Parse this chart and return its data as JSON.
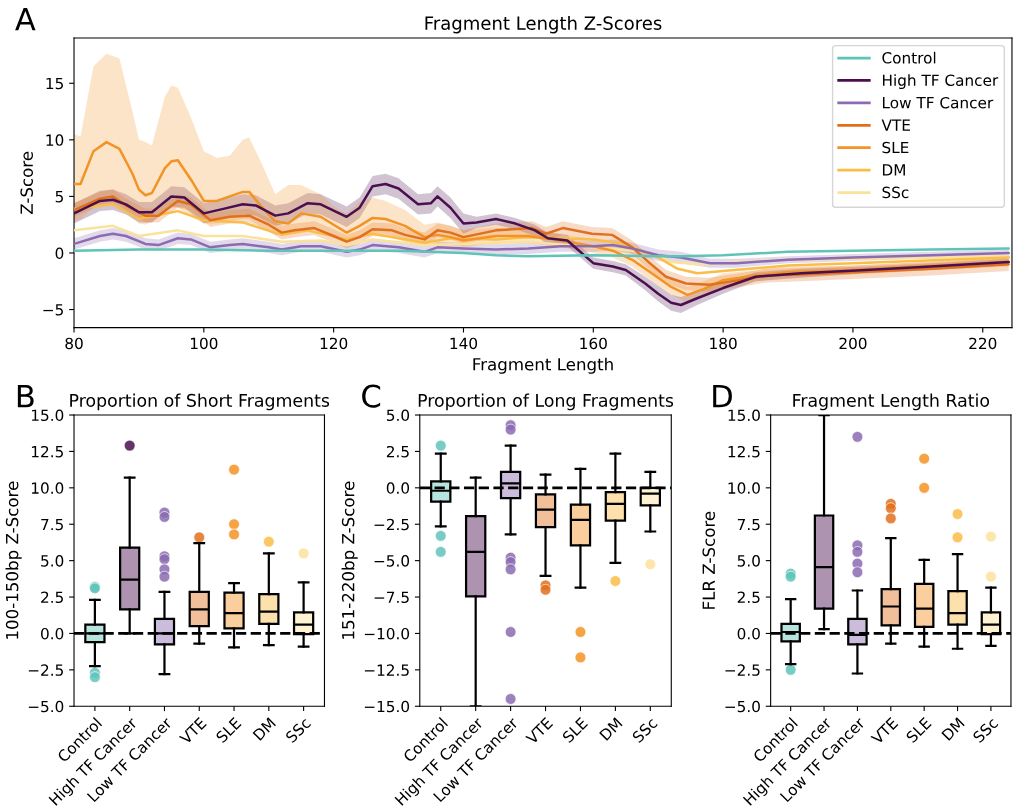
{
  "chart_data": [
    {
      "type": "line",
      "title": "Fragment Length Z-Scores",
      "xlabel": "Fragment Length",
      "ylabel": "Z-Score",
      "annotations": [
        "A"
      ],
      "xlim": [
        80,
        224.5
      ],
      "ylim": [
        -6.6,
        19
      ],
      "xticks": [
        80,
        100,
        120,
        140,
        160,
        180,
        200,
        220
      ],
      "yticks": [
        {
          "value": -5,
          "label": "−5"
        },
        0,
        5,
        10,
        15
      ],
      "legend": "top right",
      "grid": false,
      "series": [
        {
          "name": "Control",
          "color": "#5fc4b8",
          "x": [
            80,
            90,
            100,
            110,
            120,
            130,
            140,
            145,
            150,
            160,
            170,
            173.5,
            180,
            190,
            200,
            212,
            224
          ],
          "values": [
            0.2,
            0.3,
            0.3,
            0.2,
            0.2,
            0.2,
            0.0,
            -0.2,
            -0.3,
            -0.2,
            -0.3,
            -0.3,
            -0.2,
            0.1,
            0.2,
            0.3,
            0.4
          ]
        },
        {
          "name": "High TF Cancer",
          "color": "#4a0f4f",
          "x": [
            80,
            84,
            86,
            88,
            90,
            92,
            95,
            97,
            100,
            103,
            106,
            108,
            111,
            113,
            116,
            118,
            122,
            124,
            126,
            128,
            130,
            133,
            135,
            136,
            138,
            140,
            142,
            145,
            148,
            151,
            153,
            156,
            160,
            163,
            165,
            168,
            170,
            172,
            173.5,
            176,
            180,
            185,
            192,
            202,
            212,
            224
          ],
          "values": [
            3.5,
            4.6,
            4.7,
            4.3,
            3.6,
            3.6,
            5.0,
            4.9,
            3.5,
            3.9,
            4.3,
            4.2,
            3.3,
            3.5,
            4.4,
            4.3,
            3.2,
            4.0,
            5.9,
            6.1,
            5.7,
            4.3,
            4.4,
            5.0,
            4.0,
            2.6,
            2.7,
            3.0,
            2.6,
            2.0,
            1.3,
            1.1,
            -0.9,
            -1.2,
            -1.5,
            -2.7,
            -3.6,
            -4.4,
            -4.6,
            -4.0,
            -3.1,
            -2.1,
            -1.8,
            -1.5,
            -1.2,
            -0.8
          ],
          "lower": [
            2.6,
            3.7,
            3.8,
            3.4,
            2.7,
            2.7,
            4.1,
            4.0,
            2.6,
            3.0,
            3.4,
            3.3,
            2.4,
            2.6,
            3.5,
            3.4,
            2.3,
            3.1,
            5.0,
            5.2,
            4.8,
            3.4,
            3.5,
            4.1,
            3.1,
            1.7,
            2.2,
            2.5,
            2.1,
            1.5,
            0.8,
            0.6,
            -1.4,
            -1.7,
            -2.0,
            -3.3,
            -4.3,
            -5.1,
            -5.3,
            -4.6,
            -3.6,
            -2.5,
            -2.2,
            -1.8,
            -1.5,
            -1.1
          ],
          "upper": [
            4.4,
            5.5,
            5.6,
            5.2,
            4.5,
            4.5,
            5.9,
            5.8,
            4.4,
            4.8,
            5.2,
            5.1,
            4.2,
            4.4,
            5.3,
            5.2,
            4.1,
            4.9,
            6.8,
            7.0,
            6.6,
            5.2,
            5.3,
            5.9,
            4.9,
            3.5,
            3.2,
            3.5,
            3.1,
            2.5,
            1.8,
            1.6,
            -0.4,
            -0.7,
            -1.0,
            -2.1,
            -2.9,
            -3.7,
            -3.9,
            -3.4,
            -2.6,
            -1.7,
            -1.4,
            -1.2,
            -0.9,
            -0.5
          ]
        },
        {
          "name": "Low TF Cancer",
          "color": "#8c6bb1",
          "x": [
            80,
            84,
            86,
            88,
            91,
            93,
            96,
            98,
            101,
            104,
            106,
            110,
            112,
            115,
            118,
            122,
            124,
            126,
            130,
            134,
            136,
            140,
            145,
            150,
            155,
            160,
            163,
            166,
            170,
            173.5,
            178,
            182,
            190,
            200,
            224
          ],
          "values": [
            0.8,
            1.5,
            1.7,
            1.5,
            0.8,
            0.7,
            1.3,
            1.2,
            0.5,
            0.7,
            0.8,
            0.5,
            0.3,
            0.6,
            0.6,
            0.1,
            0.3,
            0.7,
            0.5,
            0.1,
            0.5,
            0.4,
            0.3,
            0.4,
            0.6,
            0.6,
            0.7,
            0.4,
            -0.2,
            -0.4,
            -0.9,
            -0.9,
            -0.6,
            -0.4,
            0.0
          ],
          "lower": [
            0.3,
            1.0,
            1.2,
            1.0,
            0.3,
            0.2,
            0.8,
            0.7,
            0.0,
            0.2,
            0.3,
            0.0,
            -0.2,
            0.1,
            0.1,
            -0.4,
            -0.2,
            0.2,
            0.0,
            -0.4,
            0.0,
            -0.1,
            -0.2,
            -0.1,
            0.1,
            0.1,
            0.2,
            -0.1,
            -0.7,
            -0.9,
            -1.3,
            -1.3,
            -0.9,
            -0.7,
            -0.3
          ],
          "upper": [
            1.3,
            2.0,
            2.2,
            2.0,
            1.3,
            1.2,
            1.8,
            1.7,
            1.0,
            1.2,
            1.3,
            1.0,
            0.8,
            1.1,
            1.1,
            0.6,
            0.8,
            1.2,
            1.0,
            0.6,
            1.0,
            0.9,
            0.8,
            0.9,
            1.1,
            1.1,
            1.2,
            0.9,
            0.3,
            0.1,
            -0.5,
            -0.5,
            -0.3,
            -0.1,
            0.3
          ]
        },
        {
          "name": "VTE",
          "color": "#e0701e",
          "x": [
            80,
            84,
            86,
            88,
            91,
            93,
            96,
            98,
            101,
            104,
            107,
            110,
            112,
            114,
            117,
            120,
            122,
            124,
            126,
            129,
            131,
            134,
            136,
            138,
            140,
            145,
            150.6,
            152.7,
            155.3,
            159.8,
            162.9,
            166,
            168.7,
            171.2,
            174.3,
            177.9,
            182.5,
            186.7,
            192,
            200,
            212,
            224
          ],
          "values": [
            3.8,
            4.8,
            5.0,
            4.2,
            3.3,
            3.3,
            4.6,
            4.3,
            2.9,
            3.2,
            3.3,
            2.5,
            1.8,
            2.0,
            2.2,
            1.5,
            1.0,
            1.4,
            2.1,
            2.0,
            1.6,
            1.2,
            2.0,
            1.8,
            1.4,
            2.0,
            2.2,
            1.7,
            2.2,
            1.7,
            1.6,
            0.5,
            -0.9,
            -2.1,
            -2.7,
            -2.8,
            -2.4,
            -2.0,
            -1.9,
            -1.7,
            -1.4,
            -1.0
          ],
          "lower": [
            3.2,
            4.2,
            4.4,
            3.6,
            2.7,
            2.7,
            4.0,
            3.7,
            2.3,
            2.6,
            2.7,
            1.9,
            1.2,
            1.4,
            1.6,
            0.9,
            0.4,
            0.8,
            1.5,
            1.4,
            1.0,
            0.6,
            1.4,
            1.2,
            0.8,
            1.4,
            1.6,
            1.1,
            1.6,
            1.1,
            1.0,
            -0.1,
            -1.5,
            -2.7,
            -3.3,
            -3.4,
            -3.0,
            -2.6,
            -2.5,
            -2.3,
            -2.0,
            -1.6
          ],
          "upper": [
            4.4,
            5.4,
            5.6,
            4.8,
            3.9,
            3.9,
            5.2,
            4.9,
            3.5,
            3.8,
            3.9,
            3.1,
            2.4,
            2.6,
            2.8,
            2.1,
            1.6,
            2.0,
            2.7,
            2.6,
            2.2,
            1.8,
            2.6,
            2.4,
            2.0,
            2.6,
            2.8,
            2.3,
            2.8,
            2.3,
            2.2,
            1.1,
            -0.3,
            -1.5,
            -2.1,
            -2.2,
            -1.8,
            -1.4,
            -1.3,
            -1.1,
            -0.8,
            -0.4
          ]
        },
        {
          "name": "SLE",
          "color": "#f39325",
          "x": [
            80,
            81,
            83,
            85,
            87,
            89,
            90,
            91,
            92,
            94,
            95,
            96,
            98,
            100,
            102,
            104,
            106,
            107,
            109,
            111,
            113,
            115,
            118,
            120,
            122,
            124,
            126,
            128,
            131,
            134,
            136,
            138,
            140,
            145,
            150,
            155,
            160,
            163,
            166,
            169,
            172,
            174.5,
            177,
            180,
            185,
            190,
            200,
            210,
            224
          ],
          "values": [
            6.1,
            6.1,
            9.0,
            9.8,
            9.2,
            7.0,
            5.6,
            5.1,
            5.3,
            7.5,
            8.1,
            8.2,
            6.5,
            4.6,
            4.6,
            5.0,
            5.4,
            5.4,
            4.0,
            2.8,
            2.6,
            3.5,
            3.2,
            2.5,
            1.8,
            2.4,
            3.1,
            3.0,
            2.4,
            1.4,
            1.6,
            1.4,
            1.1,
            1.5,
            1.5,
            1.1,
            0.6,
            0.2,
            -0.6,
            -1.8,
            -3.0,
            -3.7,
            -3.2,
            -2.4,
            -2.0,
            -1.7,
            -1.5,
            -1.2,
            -0.8
          ],
          "lower": [
            2.8,
            3.0,
            4.0,
            4.5,
            4.3,
            3.2,
            2.6,
            2.5,
            2.8,
            3.6,
            4.0,
            4.0,
            3.2,
            2.6,
            2.6,
            2.8,
            3.0,
            3.0,
            2.2,
            1.6,
            1.6,
            2.2,
            2.0,
            1.3,
            0.9,
            1.4,
            1.8,
            1.7,
            1.2,
            0.6,
            0.8,
            0.7,
            0.5,
            0.9,
            0.9,
            0.5,
            0.0,
            -0.4,
            -1.2,
            -2.5,
            -3.7,
            -4.4,
            -3.9,
            -3.0,
            -2.5,
            -2.2,
            -1.9,
            -1.6,
            -1.2
          ],
          "upper": [
            10.5,
            10.3,
            16.5,
            17.6,
            17.2,
            12.5,
            10.0,
            9.8,
            9.5,
            13.8,
            14.8,
            14.6,
            12.0,
            9.0,
            8.4,
            8.6,
            10.0,
            10.2,
            7.8,
            5.2,
            6.0,
            6.0,
            5.2,
            4.1,
            3.5,
            4.5,
            4.9,
            4.6,
            3.8,
            2.5,
            2.7,
            2.4,
            2.0,
            2.2,
            2.1,
            1.7,
            1.2,
            0.8,
            0.0,
            -1.1,
            -2.3,
            -3.0,
            -2.5,
            -1.8,
            -1.5,
            -1.2,
            -1.1,
            -0.8,
            -0.4
          ]
        },
        {
          "name": "DM",
          "color": "#f9bd48",
          "x": [
            80,
            86,
            90,
            96,
            100,
            106,
            112,
            116,
            122,
            126,
            134,
            138,
            145,
            150,
            155,
            160,
            165,
            170,
            173,
            176,
            180,
            190,
            200,
            224
          ],
          "values": [
            3.9,
            4.3,
            3.0,
            3.7,
            2.9,
            2.7,
            1.6,
            2.0,
            1.2,
            1.7,
            0.9,
            1.3,
            1.2,
            1.4,
            1.3,
            1.2,
            0.8,
            -0.4,
            -1.4,
            -1.8,
            -1.6,
            -1.1,
            -0.9,
            -0.4
          ]
        },
        {
          "name": "SSc",
          "color": "#fbe29c",
          "x": [
            80,
            86,
            90,
            96,
            100,
            106,
            112,
            118,
            122,
            126,
            134,
            140,
            150,
            160,
            168,
            172,
            176,
            180,
            190,
            200,
            224
          ],
          "values": [
            2.0,
            2.4,
            1.5,
            2.0,
            1.5,
            1.5,
            1.0,
            1.1,
            0.7,
            1.2,
            0.7,
            0.8,
            1.0,
            0.5,
            0.1,
            -0.8,
            -1.0,
            -0.9,
            -0.6,
            -0.5,
            -0.3
          ]
        }
      ]
    },
    {
      "type": "box",
      "title": "Proportion of Short Fragments",
      "ylabel": "100-150bp Z-Score",
      "annotations": [
        "B"
      ],
      "categories": [
        "Control",
        "High TF Cancer",
        "Low TF Cancer",
        "VTE",
        "SLE",
        "DM",
        "SSc"
      ],
      "colors": [
        "#5fc4b8",
        "#4a0f4f",
        "#8c6bb1",
        "#e0701e",
        "#f39325",
        "#f9bd48",
        "#fbe29c"
      ],
      "ylim": [
        -5.0,
        15.0
      ],
      "yticks": [
        {
          "value": -5.0,
          "label": "−5.0"
        },
        {
          "value": -2.5,
          "label": "−2.5"
        },
        {
          "value": 0,
          "label": "0.0"
        },
        {
          "value": 2.5,
          "label": "2.5"
        },
        {
          "value": 5,
          "label": "5.0"
        },
        {
          "value": 7.5,
          "label": "7.5"
        },
        {
          "value": 10,
          "label": "10.0"
        },
        {
          "value": 12.5,
          "label": "12.5"
        },
        {
          "value": 15,
          "label": "15.0"
        }
      ],
      "ref_lines": [
        {
          "axis": "y",
          "value": 0,
          "color": "#000000",
          "line_style": "dashed"
        }
      ],
      "boxes": [
        {
          "low": -2.25,
          "q1": -0.6,
          "median": 0.0,
          "q3": 0.6,
          "high": 2.3,
          "outliers": [
            3.2,
            3.1,
            -2.7,
            -3.0
          ]
        },
        {
          "low": 0.0,
          "q1": 1.65,
          "median": 3.7,
          "q3": 5.9,
          "high": 10.7,
          "outliers": [
            12.9
          ]
        },
        {
          "low": -2.8,
          "q1": -0.75,
          "median": 0.0,
          "q3": 1.0,
          "high": 2.85,
          "outliers": [
            8.3,
            8.0,
            5.3,
            5.1,
            4.4,
            3.9
          ]
        },
        {
          "low": -0.7,
          "q1": 0.5,
          "median": 1.65,
          "q3": 2.85,
          "high": 6.2,
          "outliers": [
            6.6
          ]
        },
        {
          "low": -0.95,
          "q1": 0.35,
          "median": 1.4,
          "q3": 2.8,
          "high": 3.45,
          "outliers": [
            11.25,
            7.5,
            6.8
          ]
        },
        {
          "low": -0.8,
          "q1": 0.65,
          "median": 1.5,
          "q3": 2.7,
          "high": 5.5,
          "outliers": [
            6.3
          ]
        },
        {
          "low": -0.9,
          "q1": -0.05,
          "median": 0.6,
          "q3": 1.45,
          "high": 3.5,
          "outliers": [
            5.5
          ]
        }
      ]
    },
    {
      "type": "box",
      "title": "Proportion of Long Fragments",
      "ylabel": "151-220bp Z-Score",
      "annotations": [
        "C"
      ],
      "categories": [
        "Control",
        "High TF Cancer",
        "Low TF Cancer",
        "VTE",
        "SLE",
        "DM",
        "SSc"
      ],
      "colors": [
        "#5fc4b8",
        "#4a0f4f",
        "#8c6bb1",
        "#e0701e",
        "#f39325",
        "#f9bd48",
        "#fbe29c"
      ],
      "ylim": [
        -15.0,
        5.0
      ],
      "yticks": [
        {
          "value": -15.0,
          "label": "−15.0"
        },
        {
          "value": -12.5,
          "label": "−12.5"
        },
        {
          "value": -10.0,
          "label": "−10.0"
        },
        {
          "value": -7.5,
          "label": "−7.5"
        },
        {
          "value": -5.0,
          "label": "−5.0"
        },
        {
          "value": -2.5,
          "label": "−2.5"
        },
        {
          "value": 0,
          "label": "0.0"
        },
        {
          "value": 2.5,
          "label": "2.5"
        },
        {
          "value": 5,
          "label": "5.0"
        }
      ],
      "ref_lines": [
        {
          "axis": "y",
          "value": 0,
          "color": "#000000",
          "line_style": "dashed"
        }
      ],
      "boxes": [
        {
          "low": -2.65,
          "q1": -0.95,
          "median": -0.2,
          "q3": 0.45,
          "high": 2.35,
          "outliers": [
            2.9,
            -3.3,
            -4.4
          ]
        },
        {
          "low": -15.0,
          "q1": -7.45,
          "median": -4.4,
          "q3": -1.95,
          "high": 0.7
        },
        {
          "low": -3.2,
          "q1": -0.7,
          "median": 0.3,
          "q3": 1.1,
          "high": 2.9,
          "outliers": [
            4.3,
            4.0,
            -4.8,
            -5.1,
            -5.6,
            -9.9,
            -14.5
          ]
        },
        {
          "low": -6.05,
          "q1": -2.7,
          "median": -1.5,
          "q3": -0.45,
          "high": 0.9,
          "outliers": [
            -6.7,
            -7.0
          ]
        },
        {
          "low": -6.85,
          "q1": -3.95,
          "median": -2.2,
          "q3": -1.15,
          "high": 1.3,
          "outliers": [
            -9.9,
            -11.65
          ]
        },
        {
          "low": -5.15,
          "q1": -2.25,
          "median": -1.1,
          "q3": -0.3,
          "high": 2.35,
          "outliers": [
            -6.4
          ]
        },
        {
          "low": -3.0,
          "q1": -1.2,
          "median": -0.4,
          "q3": 0.0,
          "high": 1.1,
          "outliers": [
            -5.25
          ]
        }
      ]
    },
    {
      "type": "box",
      "title": "Fragment Length Ratio",
      "ylabel": "FLR Z-Score",
      "annotations": [
        "D"
      ],
      "categories": [
        "Control",
        "High TF Cancer",
        "Low TF Cancer",
        "VTE",
        "SLE",
        "DM",
        "SSc"
      ],
      "colors": [
        "#5fc4b8",
        "#4a0f4f",
        "#8c6bb1",
        "#e0701e",
        "#f39325",
        "#f9bd48",
        "#fbe29c"
      ],
      "ylim": [
        -5.0,
        15.0
      ],
      "yticks": [
        {
          "value": -5.0,
          "label": "−5.0"
        },
        {
          "value": -2.5,
          "label": "−2.5"
        },
        {
          "value": 0,
          "label": "0.0"
        },
        {
          "value": 2.5,
          "label": "2.5"
        },
        {
          "value": 5,
          "label": "5.0"
        },
        {
          "value": 7.5,
          "label": "7.5"
        },
        {
          "value": 10,
          "label": "10.0"
        },
        {
          "value": 12.5,
          "label": "12.5"
        },
        {
          "value": 15,
          "label": "15.0"
        }
      ],
      "ref_lines": [
        {
          "axis": "y",
          "value": 0,
          "color": "#000000",
          "line_style": "dashed"
        }
      ],
      "boxes": [
        {
          "low": -2.1,
          "q1": -0.55,
          "median": 0.1,
          "q3": 0.65,
          "high": 2.35,
          "outliers": [
            4.1,
            3.9,
            -2.5
          ]
        },
        {
          "low": 0.3,
          "q1": 1.7,
          "median": 4.55,
          "q3": 8.1,
          "high": 15.0
        },
        {
          "low": -2.75,
          "q1": -0.75,
          "median": -0.1,
          "q3": 1.0,
          "high": 2.95,
          "outliers": [
            13.5,
            6.05,
            5.6,
            4.8,
            4.2
          ]
        },
        {
          "low": -0.7,
          "q1": 0.55,
          "median": 1.85,
          "q3": 3.05,
          "high": 6.55,
          "outliers": [
            8.9,
            8.6,
            7.9
          ]
        },
        {
          "low": -0.9,
          "q1": 0.45,
          "median": 1.7,
          "q3": 3.4,
          "high": 5.05,
          "outliers": [
            12.0,
            10.0
          ]
        },
        {
          "low": -1.05,
          "q1": 0.6,
          "median": 1.4,
          "q3": 2.9,
          "high": 5.45,
          "outliers": [
            8.2,
            6.6
          ]
        },
        {
          "low": -0.85,
          "q1": -0.05,
          "median": 0.6,
          "q3": 1.45,
          "high": 3.15,
          "outliers": [
            6.65,
            3.9
          ]
        }
      ]
    }
  ]
}
